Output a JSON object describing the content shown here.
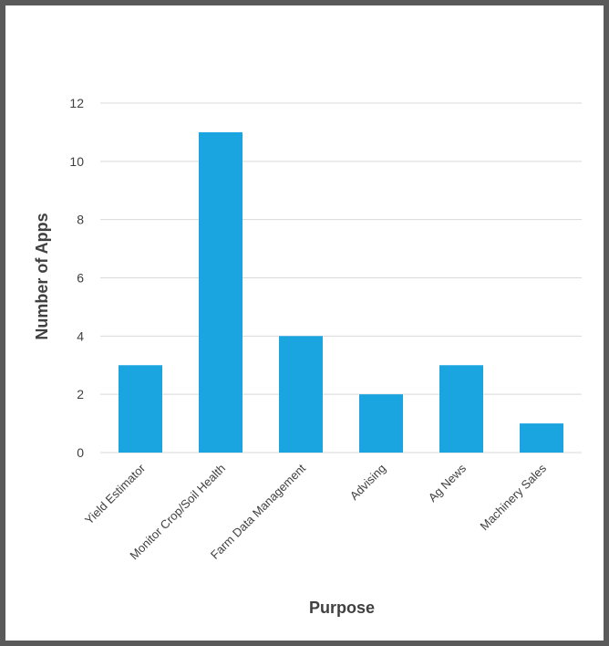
{
  "chart_data": {
    "type": "bar",
    "title": "",
    "xlabel": "Purpose",
    "ylabel": "Number of Apps",
    "categories": [
      "Yield Estimator",
      "Monitor Crop/Soil Health",
      "Farm Data Management",
      "Advising",
      "Ag News",
      "Machinery Sales"
    ],
    "values": [
      3,
      11,
      4,
      2,
      3,
      1
    ],
    "ylim": [
      0,
      12
    ],
    "yticks": [
      0,
      2,
      4,
      6,
      8,
      10,
      12
    ],
    "grid": true,
    "legend": "none",
    "colors": {
      "bar": "#1BA5E0",
      "grid": "#d9d9d9",
      "axis_text": "#404040",
      "frame": "#5a5a5a"
    }
  }
}
